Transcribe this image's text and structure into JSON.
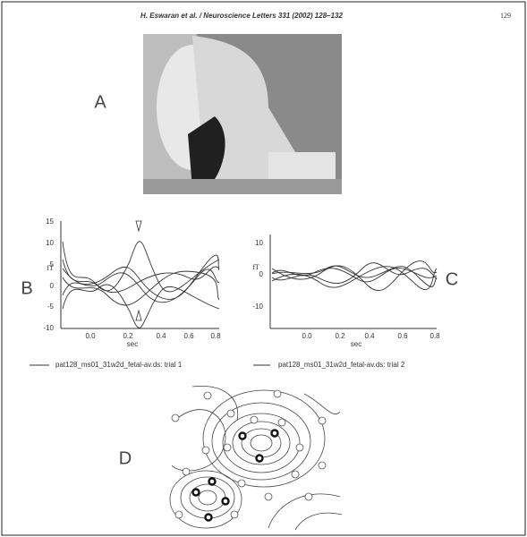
{
  "header": {
    "running_title": "H. Eswaran et al. / Neuroscience Letters 331 (2002) 128–132",
    "page_number": "129"
  },
  "figure": {
    "panels": {
      "a": "A",
      "b": "B",
      "c": "C",
      "d": "D"
    },
    "plot_b": {
      "y_unit": "fT",
      "x_label": "sec",
      "yticks": [
        "15",
        "10",
        "5",
        "0",
        "-5",
        "-10"
      ],
      "xticks": [
        "0.0",
        "0.2",
        "0.4",
        "0.6",
        "0.8"
      ],
      "legend": "pat128_ms01_31w2d_fetal-av.ds: trial 1"
    },
    "plot_c": {
      "y_unit": "fT",
      "x_label": "sec",
      "yticks": [
        "10",
        "0",
        "-10"
      ],
      "xticks": [
        "0.0",
        "0.2",
        "0.4",
        "0.6",
        "0.8"
      ],
      "legend": "pat128_ms01_31w2d_fetal-av.ds: trial 2"
    }
  }
}
